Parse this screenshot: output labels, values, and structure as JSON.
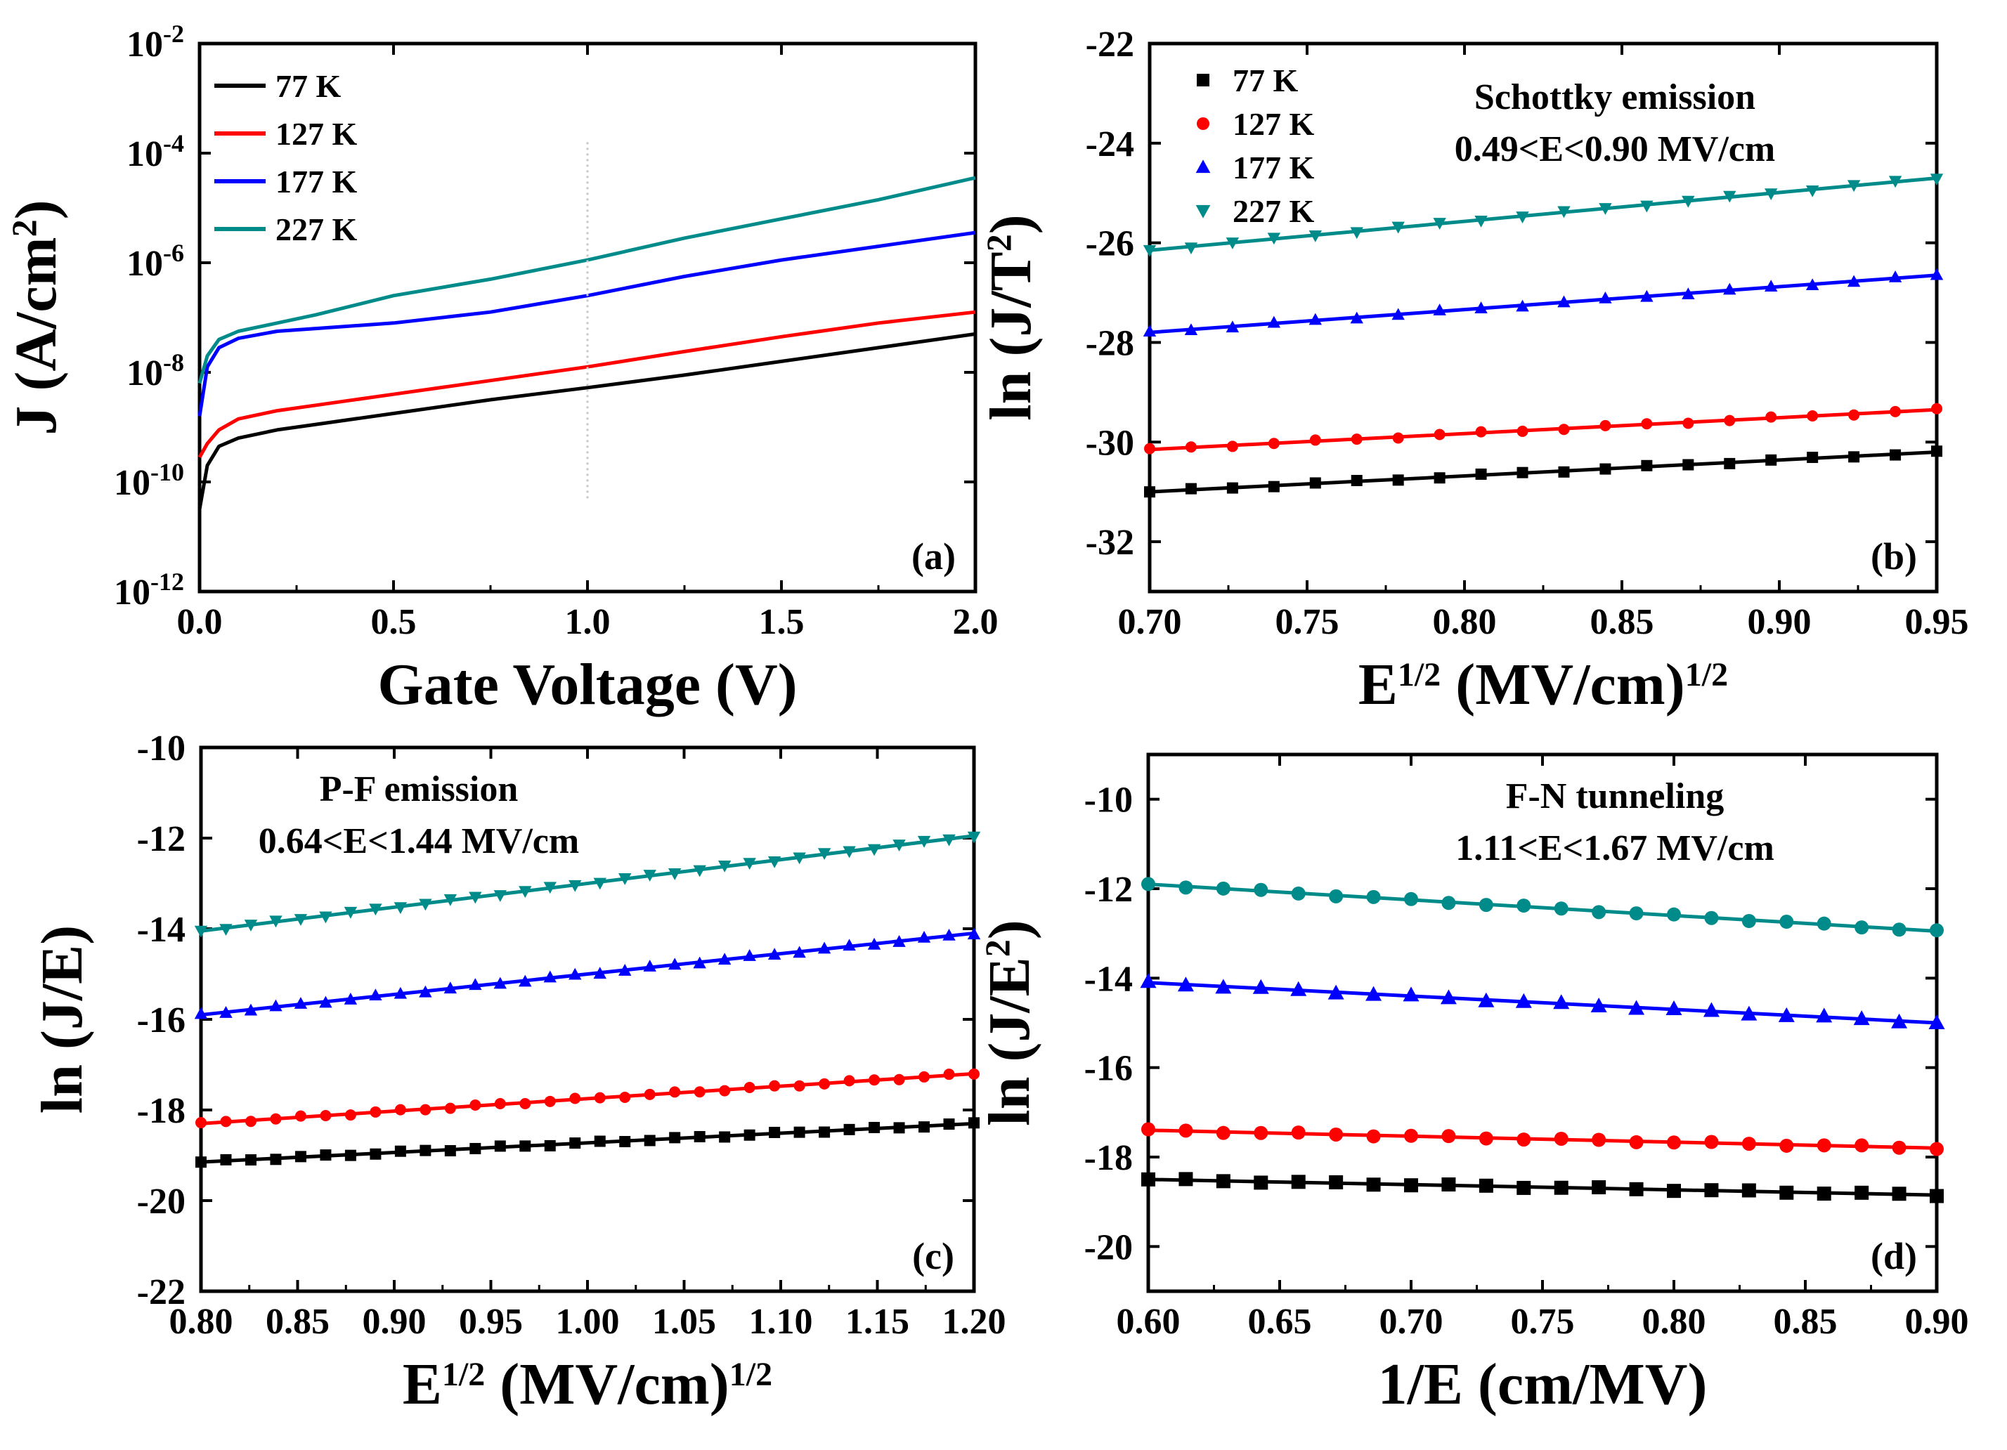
{
  "colors": {
    "77 K": "#000000",
    "127 K": "#ff0000",
    "177 K": "#0000ff",
    "227 K": "#008b8b"
  },
  "chart_data": [
    {
      "panel": "a",
      "type": "line",
      "label": "(a)",
      "xlabel": "Gate Voltage (V)",
      "ylabel_parts": [
        "J (A/cm",
        "2",
        ")"
      ],
      "yscale": "log",
      "xlim": [
        0,
        2.0
      ],
      "ylim_exp": [
        -12,
        -2
      ],
      "x_ticks": [
        "0.0",
        "0.5",
        "1.0",
        "1.5",
        "2.0"
      ],
      "y_ticks": [
        {
          "base": "10",
          "exp": "-2"
        },
        {
          "base": "10",
          "exp": "-4"
        },
        {
          "base": "10",
          "exp": "-6"
        },
        {
          "base": "10",
          "exp": "-8"
        },
        {
          "base": "10",
          "exp": "-10"
        },
        {
          "base": "10",
          "exp": "-12"
        }
      ],
      "legend": [
        "77 K",
        "127 K",
        "177 K",
        "227 K"
      ],
      "series": [
        {
          "name": "77 K",
          "x": [
            0.0,
            0.02,
            0.05,
            0.1,
            0.2,
            0.3,
            0.5,
            0.75,
            1.0,
            1.25,
            1.5,
            1.75,
            2.0
          ],
          "log10_J": [
            -10.5,
            -9.7,
            -9.35,
            -9.2,
            -9.05,
            -8.95,
            -8.75,
            -8.5,
            -8.28,
            -8.05,
            -7.8,
            -7.55,
            -7.3
          ]
        },
        {
          "name": "127 K",
          "x": [
            0.0,
            0.02,
            0.05,
            0.1,
            0.2,
            0.3,
            0.5,
            0.75,
            1.0,
            1.25,
            1.5,
            1.75,
            2.0
          ],
          "log10_J": [
            -9.55,
            -9.3,
            -9.05,
            -8.85,
            -8.7,
            -8.6,
            -8.4,
            -8.15,
            -7.9,
            -7.62,
            -7.35,
            -7.1,
            -6.9
          ]
        },
        {
          "name": "177 K",
          "x": [
            0.0,
            0.02,
            0.05,
            0.1,
            0.2,
            0.3,
            0.5,
            0.75,
            1.0,
            1.25,
            1.5,
            1.75,
            2.0
          ],
          "log10_J": [
            -8.8,
            -7.9,
            -7.55,
            -7.38,
            -7.25,
            -7.2,
            -7.1,
            -6.9,
            -6.6,
            -6.25,
            -5.95,
            -5.7,
            -5.45
          ]
        },
        {
          "name": "227 K",
          "x": [
            0.0,
            0.02,
            0.05,
            0.1,
            0.2,
            0.3,
            0.5,
            0.75,
            1.0,
            1.25,
            1.5,
            1.75,
            2.0
          ],
          "log10_J": [
            -8.2,
            -7.7,
            -7.4,
            -7.25,
            -7.1,
            -6.95,
            -6.6,
            -6.3,
            -5.95,
            -5.55,
            -5.2,
            -4.85,
            -4.45
          ]
        }
      ]
    },
    {
      "panel": "b",
      "type": "scatter",
      "label": "(b)",
      "xlabel_parts": [
        "E",
        "1/2",
        " (MV/cm)",
        "1/2"
      ],
      "ylabel_parts": [
        "ln (J/T",
        "2",
        ")"
      ],
      "xlim": [
        0.7,
        0.95
      ],
      "ylim": [
        -33,
        -22
      ],
      "x_ticks": [
        "0.70",
        "0.75",
        "0.80",
        "0.85",
        "0.90",
        "0.95"
      ],
      "y_ticks": [
        "-22",
        "-24",
        "-26",
        "-28",
        "-30",
        "-32"
      ],
      "annotation": [
        "Schottky emission",
        "0.49<E<0.90 MV/cm"
      ],
      "legend": [
        "77 K",
        "127 K",
        "177 K",
        "227 K"
      ],
      "markers": [
        "square",
        "circle",
        "triangle-up",
        "triangle-down"
      ],
      "series": [
        {
          "name": "77 K",
          "fit_x": [
            0.7,
            0.95
          ],
          "fit_y": [
            -31.0,
            -30.2
          ],
          "n_points": 20
        },
        {
          "name": "127 K",
          "fit_x": [
            0.7,
            0.95
          ],
          "fit_y": [
            -30.15,
            -29.35
          ],
          "n_points": 20
        },
        {
          "name": "177 K",
          "fit_x": [
            0.7,
            0.95
          ],
          "fit_y": [
            -27.8,
            -26.65
          ],
          "n_points": 20
        },
        {
          "name": "227 K",
          "fit_x": [
            0.7,
            0.95
          ],
          "fit_y": [
            -26.15,
            -24.7
          ],
          "n_points": 20
        }
      ]
    },
    {
      "panel": "c",
      "type": "scatter",
      "label": "(c)",
      "xlabel_parts": [
        "E",
        "1/2",
        " (MV/cm)",
        "1/2"
      ],
      "ylabel": "ln (J/E)",
      "xlim": [
        0.8,
        1.2
      ],
      "ylim": [
        -22,
        -10
      ],
      "x_ticks": [
        "0.80",
        "0.85",
        "0.90",
        "0.95",
        "1.00",
        "1.05",
        "1.10",
        "1.15",
        "1.20"
      ],
      "y_ticks": [
        "-10",
        "-12",
        "-14",
        "-16",
        "-18",
        "-20",
        "-22"
      ],
      "annotation": [
        "P-F emission",
        "0.64<E<1.44 MV/cm"
      ],
      "markers": [
        "square",
        "circle",
        "triangle-up",
        "triangle-down"
      ],
      "series": [
        {
          "name": "77 K",
          "fit_x": [
            0.8,
            1.2
          ],
          "fit_y": [
            -19.15,
            -18.3
          ],
          "n_points": 32
        },
        {
          "name": "127 K",
          "fit_x": [
            0.8,
            1.2
          ],
          "fit_y": [
            -18.3,
            -17.2
          ],
          "n_points": 32
        },
        {
          "name": "177 K",
          "fit_x": [
            0.8,
            1.2
          ],
          "fit_y": [
            -15.9,
            -14.1
          ],
          "n_points": 32
        },
        {
          "name": "227 K",
          "fit_x": [
            0.8,
            1.2
          ],
          "fit_y": [
            -14.05,
            -11.95
          ],
          "n_points": 32
        }
      ]
    },
    {
      "panel": "d",
      "type": "scatter",
      "label": "(d)",
      "xlabel": "1/E (cm/MV)",
      "ylabel_parts": [
        "ln (J/E",
        "2",
        ")"
      ],
      "xlim": [
        0.6,
        0.9
      ],
      "ylim": [
        -21,
        -9
      ],
      "x_ticks": [
        "0.60",
        "0.65",
        "0.70",
        "0.75",
        "0.80",
        "0.85",
        "0.90"
      ],
      "y_ticks": [
        "-10",
        "-12",
        "-14",
        "-16",
        "-18",
        "-20"
      ],
      "annotation": [
        "F-N tunneling",
        "1.11<E<1.67 MV/cm"
      ],
      "markers": [
        "square",
        "circle",
        "triangle-up",
        "circle"
      ],
      "series": [
        {
          "name": "77 K",
          "fit_x": [
            0.6,
            0.9
          ],
          "fit_y": [
            -18.5,
            -18.85
          ],
          "n_points": 22
        },
        {
          "name": "127 K",
          "fit_x": [
            0.6,
            0.9
          ],
          "fit_y": [
            -17.4,
            -17.8
          ],
          "n_points": 22
        },
        {
          "name": "177 K",
          "fit_x": [
            0.6,
            0.9
          ],
          "fit_y": [
            -14.1,
            -15.0
          ],
          "n_points": 22
        },
        {
          "name": "227 K",
          "fit_x": [
            0.6,
            0.9
          ],
          "fit_y": [
            -11.9,
            -12.95
          ],
          "n_points": 22
        }
      ]
    }
  ]
}
